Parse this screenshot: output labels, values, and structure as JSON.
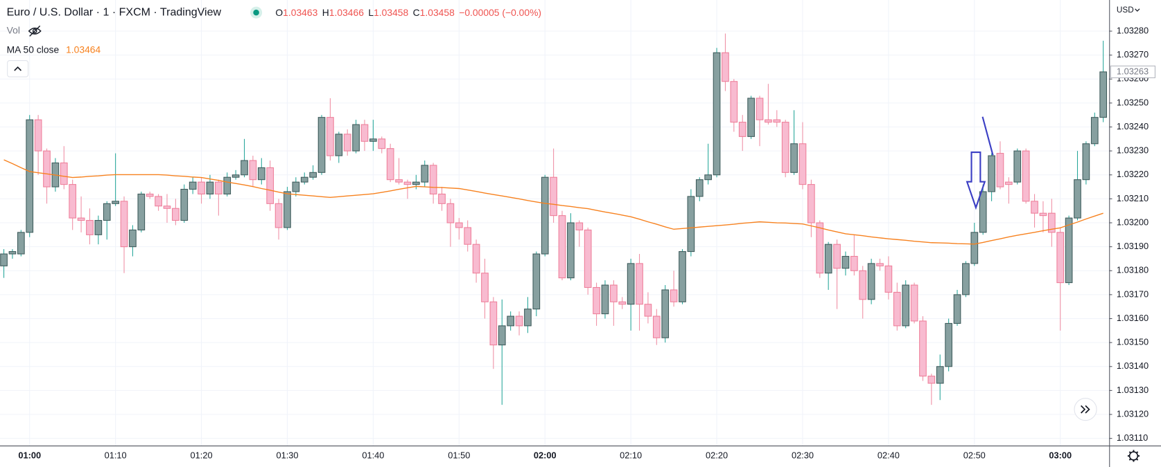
{
  "header": {
    "symbol": "Euro / U.S. Dollar · 1 · FXCM · TradingView",
    "ohlc": [
      {
        "label": "O",
        "value": 1.03463
      },
      {
        "label": "H",
        "value": 1.03466
      },
      {
        "label": "L",
        "value": 1.03458
      },
      {
        "label": "C",
        "value": 1.03458
      }
    ],
    "change": "−0.00005 (−0.00%)",
    "vol": "Vol",
    "ma_value": 1.03464,
    "currency": "USD"
  },
  "chart_data": {
    "type": "candlestick",
    "categories": [
      null,
      null,
      null,
      "01:00",
      null,
      null,
      null,
      null,
      null,
      null,
      null,
      null,
      null,
      "01:10",
      null,
      null,
      null,
      null,
      null,
      null,
      null,
      null,
      null,
      "01:20",
      null,
      null,
      null,
      null,
      null,
      null,
      null,
      null,
      null,
      "01:30",
      null,
      null,
      null,
      null,
      null,
      null,
      null,
      null,
      null,
      "01:40",
      null,
      null,
      null,
      null,
      null,
      null,
      null,
      null,
      null,
      "01:50",
      null,
      null,
      null,
      null,
      null,
      null,
      null,
      null,
      null,
      "02:00",
      null,
      null,
      null,
      null,
      null,
      null,
      null,
      null,
      null,
      "02:10",
      null,
      null,
      null,
      null,
      null,
      null,
      null,
      null,
      null,
      "02:20",
      null,
      null,
      null,
      null,
      null,
      null,
      null,
      null,
      null,
      "02:30",
      null,
      null,
      null,
      null,
      null,
      null,
      null,
      null,
      null,
      "02:40",
      null,
      null,
      null,
      null,
      null,
      null,
      null,
      null,
      null,
      "02:50",
      null,
      null,
      null,
      null,
      null,
      null,
      null,
      null,
      null,
      "03:00",
      null,
      null,
      null,
      null,
      null
    ],
    "open": [
      1.03182,
      1.03187,
      1.03187,
      1.03196,
      1.03243,
      1.0323,
      1.03215,
      1.03225,
      1.03216,
      1.03202,
      1.03201,
      1.03195,
      1.03201,
      1.03208,
      1.03209,
      1.0319,
      1.03197,
      1.03212,
      1.03211,
      1.03207,
      1.03206,
      1.03201,
      1.03214,
      1.03217,
      1.03212,
      1.03217,
      1.03212,
      1.03219,
      1.0322,
      1.03226,
      1.03218,
      1.03223,
      1.03208,
      1.03198,
      1.03213,
      1.03217,
      1.03219,
      1.03221,
      1.03244,
      1.03228,
      1.03237,
      1.0323,
      1.03241,
      1.03234,
      1.03235,
      1.03231,
      1.03218,
      1.03217,
      1.03216,
      1.03217,
      1.03224,
      1.03212,
      1.03208,
      1.032,
      1.03198,
      1.03191,
      1.03179,
      1.03167,
      1.03149,
      1.03157,
      1.03161,
      1.03157,
      1.03164,
      1.03187,
      1.03219,
      1.03203,
      1.03177,
      1.032,
      1.03197,
      1.03173,
      1.03162,
      1.03174,
      1.03167,
      1.03166,
      1.03183,
      1.03166,
      1.03161,
      1.03152,
      1.03172,
      1.03167,
      1.03188,
      1.03211,
      1.03218,
      1.0322,
      1.03271,
      1.03259,
      1.03242,
      1.03236,
      1.03252,
      1.03243,
      1.03243,
      1.03242,
      1.03221,
      1.03233,
      1.03216,
      1.032,
      1.03179,
      1.03191,
      1.03181,
      1.03186,
      1.0318,
      1.03168,
      1.03183,
      1.03182,
      1.03171,
      1.03157,
      1.03174,
      1.03159,
      1.03136,
      1.03133,
      1.0314,
      1.03158,
      1.0317,
      1.03183,
      1.03196,
      1.03213,
      1.03229,
      1.03217,
      1.03217,
      1.0323,
      1.03209,
      1.03204,
      1.03204,
      1.03196,
      1.03175,
      1.03202,
      1.03218,
      1.03233,
      1.03244
    ],
    "high": [
      1.03189,
      1.03189,
      1.03197,
      1.03245,
      1.03245,
      1.03231,
      1.03227,
      1.03232,
      1.03218,
      1.03211,
      1.03206,
      1.03203,
      1.03209,
      1.03229,
      1.03211,
      1.03199,
      1.03213,
      1.03213,
      1.03212,
      1.03212,
      1.0321,
      1.03216,
      1.03219,
      1.03219,
      1.0322,
      1.03218,
      1.03221,
      1.03222,
      1.03235,
      1.03228,
      1.03227,
      1.03226,
      1.0321,
      1.03215,
      1.03219,
      1.03221,
      1.03224,
      1.03245,
      1.03252,
      1.03238,
      1.03239,
      1.03243,
      1.03243,
      1.03243,
      1.03236,
      1.03233,
      1.03227,
      1.03218,
      1.0322,
      1.03226,
      1.03225,
      1.03215,
      1.0321,
      1.03202,
      1.03201,
      1.03193,
      1.03185,
      1.03169,
      1.03168,
      1.03163,
      1.03163,
      1.03169,
      1.03188,
      1.0322,
      1.03231,
      1.03205,
      1.03204,
      1.03201,
      1.03198,
      1.03175,
      1.03176,
      1.03176,
      1.03169,
      1.03185,
      1.03187,
      1.03171,
      1.03164,
      1.03174,
      1.0318,
      1.03189,
      1.03214,
      1.03219,
      1.03233,
      1.03273,
      1.03279,
      1.0326,
      1.03245,
      1.03253,
      1.03253,
      1.03258,
      1.03247,
      1.03243,
      1.03247,
      1.03242,
      1.03218,
      1.03201,
      1.03192,
      1.03193,
      1.03188,
      1.03195,
      1.03182,
      1.03185,
      1.03185,
      1.03186,
      1.03175,
      1.03176,
      1.03175,
      1.03161,
      1.03137,
      1.03145,
      1.0316,
      1.03172,
      1.03184,
      1.032,
      1.03216,
      1.03229,
      1.03234,
      1.03219,
      1.03231,
      1.03231,
      1.03212,
      1.03209,
      1.0321,
      1.03198,
      1.03203,
      1.0323,
      1.03234,
      1.03246,
      1.03276
    ],
    "low": [
      1.03177,
      1.03185,
      1.03186,
      1.03194,
      1.0322,
      1.03208,
      1.03213,
      1.03214,
      1.03197,
      1.03196,
      1.03191,
      1.03191,
      1.03193,
      1.03207,
      1.03179,
      1.03186,
      1.03196,
      1.0321,
      1.03205,
      1.032,
      1.03199,
      1.032,
      1.03212,
      1.03208,
      1.0321,
      1.03203,
      1.03211,
      1.03218,
      1.03219,
      1.03215,
      1.03216,
      1.03205,
      1.03193,
      1.03197,
      1.03211,
      1.03216,
      1.03218,
      1.0322,
      1.03226,
      1.03225,
      1.03228,
      1.03229,
      1.0323,
      1.0323,
      1.03229,
      1.03217,
      1.03216,
      1.0321,
      1.03214,
      1.03215,
      1.03208,
      1.03205,
      1.0319,
      1.03193,
      1.03188,
      1.03175,
      1.0316,
      1.03139,
      1.03124,
      1.03155,
      1.03153,
      1.03154,
      1.03161,
      1.03186,
      1.032,
      1.03176,
      1.03176,
      1.0319,
      1.0317,
      1.03157,
      1.0316,
      1.03157,
      1.03164,
      1.03155,
      1.03155,
      1.03158,
      1.03149,
      1.0315,
      1.03165,
      1.03166,
      1.03186,
      1.03209,
      1.03216,
      1.03219,
      1.03255,
      1.03238,
      1.0323,
      1.03235,
      1.03232,
      1.03241,
      1.0324,
      1.03219,
      1.0322,
      1.03214,
      1.03194,
      1.03177,
      1.03172,
      1.03164,
      1.03178,
      1.03178,
      1.0316,
      1.03166,
      1.0318,
      1.03168,
      1.03155,
      1.03156,
      1.03158,
      1.03134,
      1.03124,
      1.03126,
      1.03138,
      1.03157,
      1.03169,
      1.03182,
      1.03195,
      1.03209,
      1.03214,
      1.03208,
      1.03216,
      1.03208,
      1.03198,
      1.03196,
      1.0319,
      1.03155,
      1.03174,
      1.03201,
      1.03216,
      1.03232,
      1.03242
    ],
    "close": [
      1.03187,
      1.03188,
      1.03196,
      1.03243,
      1.0323,
      1.03215,
      1.03225,
      1.03216,
      1.03202,
      1.03201,
      1.03195,
      1.03201,
      1.03208,
      1.03209,
      1.0319,
      1.03197,
      1.03212,
      1.03211,
      1.03207,
      1.03206,
      1.03201,
      1.03214,
      1.03217,
      1.03212,
      1.03217,
      1.03212,
      1.03219,
      1.0322,
      1.03226,
      1.03218,
      1.03223,
      1.03208,
      1.03198,
      1.03213,
      1.03217,
      1.03219,
      1.03221,
      1.03244,
      1.03228,
      1.03237,
      1.0323,
      1.03241,
      1.03234,
      1.03235,
      1.03231,
      1.03218,
      1.03217,
      1.03216,
      1.03217,
      1.03224,
      1.03212,
      1.03208,
      1.032,
      1.03198,
      1.03191,
      1.03179,
      1.03167,
      1.03149,
      1.03157,
      1.03161,
      1.03157,
      1.03164,
      1.03187,
      1.03219,
      1.03203,
      1.03177,
      1.032,
      1.03197,
      1.03173,
      1.03162,
      1.03174,
      1.03167,
      1.03166,
      1.03183,
      1.03166,
      1.03161,
      1.03152,
      1.03172,
      1.03167,
      1.03188,
      1.03211,
      1.03218,
      1.0322,
      1.03271,
      1.03259,
      1.03242,
      1.03236,
      1.03252,
      1.03243,
      1.03242,
      1.03242,
      1.03221,
      1.03233,
      1.03216,
      1.032,
      1.03179,
      1.03191,
      1.03181,
      1.03186,
      1.0318,
      1.03168,
      1.03183,
      1.03182,
      1.03171,
      1.03157,
      1.03174,
      1.03159,
      1.03136,
      1.03133,
      1.0314,
      1.03158,
      1.0317,
      1.03183,
      1.03196,
      1.03213,
      1.03228,
      1.03215,
      1.03216,
      1.0323,
      1.03209,
      1.03204,
      1.03203,
      1.03196,
      1.03175,
      1.03202,
      1.03218,
      1.03233,
      1.03244,
      1.03263
    ],
    "colors": {
      "up_body": "#87a0a0",
      "up_border": "#3e5b5b",
      "up_wick": "#26a69a",
      "down_body": "#f8bbd0",
      "down_border": "#ee7f9a",
      "down_wick": "#ef8fa4"
    },
    "ma": {
      "name": "MA 50 close",
      "color": "#f7811e",
      "values": [
        1.032263,
        1.032247,
        1.03223,
        1.032214,
        1.032209,
        1.032204,
        1.032199,
        1.032194,
        1.032189,
        1.032191,
        1.032194,
        1.032196,
        1.032199,
        1.032201,
        1.032201,
        1.032201,
        1.032201,
        1.032201,
        1.032201,
        1.032199,
        1.032196,
        1.032194,
        1.032191,
        1.032189,
        1.032183,
        1.032177,
        1.03217,
        1.032164,
        1.032158,
        1.032151,
        1.032143,
        1.032136,
        1.032128,
        1.032121,
        1.032118,
        1.032115,
        1.032112,
        1.032109,
        1.032106,
        1.032109,
        1.032112,
        1.032115,
        1.032118,
        1.032121,
        1.032127,
        1.032133,
        1.03214,
        1.032146,
        1.032152,
        1.03215,
        1.032148,
        1.032147,
        1.032145,
        1.032143,
        1.032137,
        1.032131,
        1.032124,
        1.032118,
        1.032112,
        1.032106,
        1.0321,
        1.032093,
        1.032087,
        1.032081,
        1.032077,
        1.032072,
        1.032068,
        1.032063,
        1.032059,
        1.032052,
        1.032045,
        1.032039,
        1.032032,
        1.032025,
        1.032015,
        1.032004,
        1.031994,
        1.031983,
        1.031973,
        1.031976,
        1.031979,
        1.031982,
        1.031985,
        1.031988,
        1.031991,
        1.031994,
        1.031998,
        1.032001,
        1.032004,
        1.032002,
        1.032,
        1.031999,
        1.031997,
        1.031995,
        1.031987,
        1.031979,
        1.03197,
        1.031962,
        1.031954,
        1.03195,
        1.031946,
        1.031941,
        1.031937,
        1.031933,
        1.03193,
        1.031927,
        1.031923,
        1.03192,
        1.031917,
        1.031916,
        1.031915,
        1.031913,
        1.031912,
        1.031911,
        1.031918,
        1.031926,
        1.031933,
        1.031941,
        1.031948,
        1.031954,
        1.03196,
        1.031967,
        1.031973,
        1.031979,
        1.031991,
        1.032003,
        1.032016,
        1.032028,
        1.03204
      ]
    },
    "last_price": 1.03263,
    "ylim": [
      1.03107,
      1.03293
    ],
    "yticks": [
      {
        "value": 1.0311,
        "label": "1.03110"
      },
      {
        "value": 1.0312,
        "label": "1.03120"
      },
      {
        "value": 1.0313,
        "label": "1.03130"
      },
      {
        "value": 1.0314,
        "label": "1.03140"
      },
      {
        "value": 1.0315,
        "label": "1.03150"
      },
      {
        "value": 1.0316,
        "label": "1.03160"
      },
      {
        "value": 1.0317,
        "label": "1.03170"
      },
      {
        "value": 1.0318,
        "label": "1.03180"
      },
      {
        "value": 1.0319,
        "label": "1.03190"
      },
      {
        "value": 1.032,
        "label": "1.03200"
      },
      {
        "value": 1.0321,
        "label": "1.03210"
      },
      {
        "value": 1.0322,
        "label": "1.03220"
      },
      {
        "value": 1.0323,
        "label": "1.03230"
      },
      {
        "value": 1.0324,
        "label": "1.03240"
      },
      {
        "value": 1.0325,
        "label": "1.03250"
      },
      {
        "value": 1.0326,
        "label": "1.03260"
      },
      {
        "value": 1.0327,
        "label": "1.03270"
      },
      {
        "value": 1.0328,
        "label": "1.03280"
      }
    ],
    "grid": true
  }
}
